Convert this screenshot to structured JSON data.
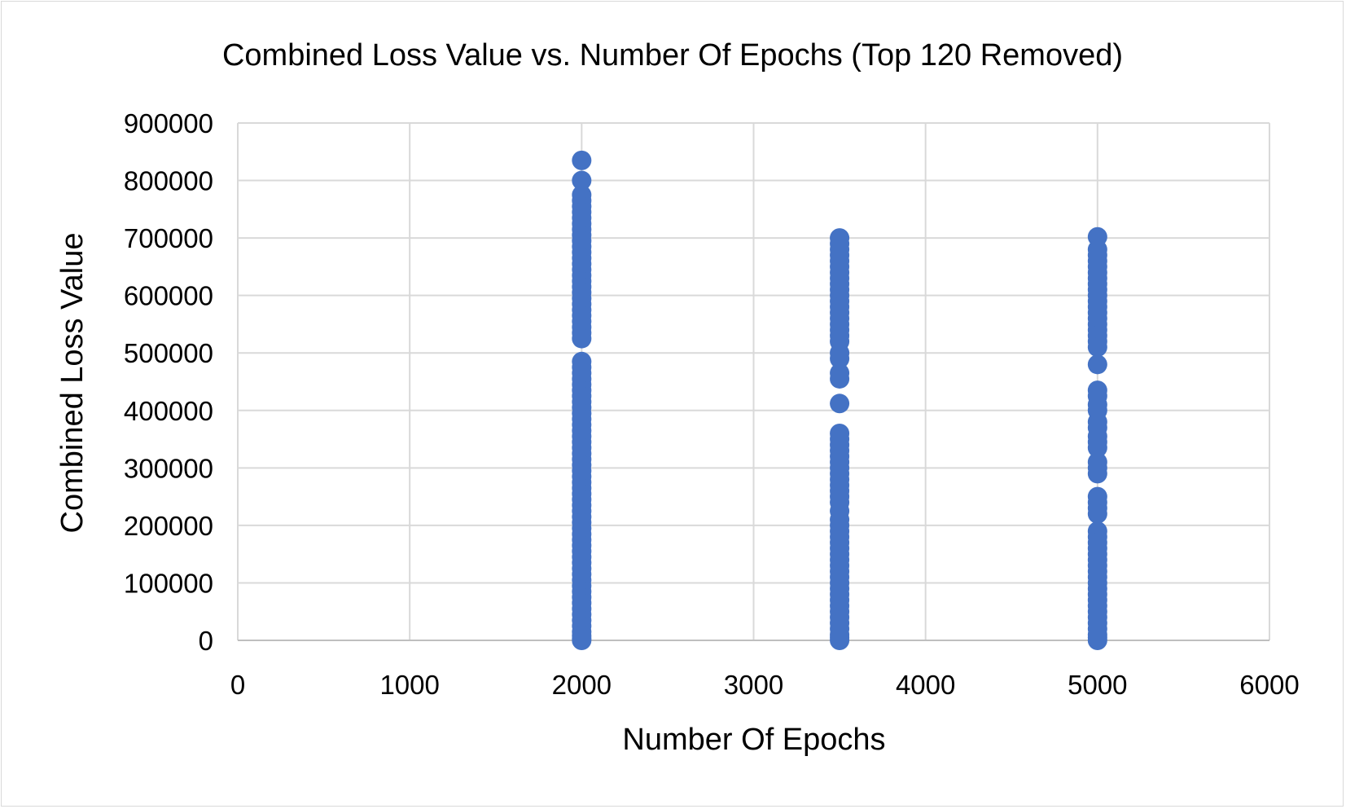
{
  "chart_data": {
    "type": "scatter",
    "title": "Combined Loss Value vs. Number Of Epochs (Top 120 Removed)",
    "xlabel": "Number Of Epochs",
    "ylabel": "Combined Loss Value",
    "xlim": [
      0,
      6000
    ],
    "ylim": [
      0,
      900000
    ],
    "xticks": [
      0,
      1000,
      2000,
      3000,
      4000,
      5000,
      6000
    ],
    "yticks": [
      0,
      100000,
      200000,
      300000,
      400000,
      500000,
      600000,
      700000,
      800000,
      900000
    ],
    "grid": true,
    "legend": "none",
    "marker_color": "#4472C4",
    "series": [
      {
        "x": 2000,
        "y": [
          835000,
          800000,
          775000,
          765000,
          755000,
          745000,
          735000,
          725000,
          715000,
          705000,
          695000,
          685000,
          675000,
          665000,
          655000,
          645000,
          635000,
          625000,
          615000,
          605000,
          595000,
          585000,
          575000,
          565000,
          555000,
          545000,
          535000,
          525000,
          485000,
          475000,
          465000,
          455000,
          445000,
          435000,
          425000,
          415000,
          405000,
          395000,
          385000,
          375000,
          365000,
          355000,
          345000,
          335000,
          325000,
          315000,
          305000,
          295000,
          285000,
          275000,
          265000,
          255000,
          245000,
          235000,
          225000,
          215000,
          205000,
          195000,
          185000,
          175000,
          165000,
          155000,
          145000,
          135000,
          125000,
          115000,
          105000,
          95000,
          85000,
          75000,
          65000,
          55000,
          45000,
          35000,
          25000,
          15000,
          8000,
          3000,
          0
        ]
      },
      {
        "x": 3500,
        "y": [
          700000,
          690000,
          680000,
          670000,
          660000,
          650000,
          640000,
          630000,
          620000,
          610000,
          600000,
          590000,
          580000,
          570000,
          560000,
          550000,
          540000,
          530000,
          520000,
          500000,
          490000,
          465000,
          455000,
          412000,
          360000,
          350000,
          340000,
          330000,
          320000,
          310000,
          300000,
          290000,
          280000,
          270000,
          260000,
          250000,
          240000,
          225000,
          210000,
          200000,
          190000,
          180000,
          170000,
          160000,
          150000,
          140000,
          130000,
          120000,
          110000,
          100000,
          90000,
          80000,
          70000,
          60000,
          50000,
          40000,
          30000,
          20000,
          10000,
          5000,
          0
        ]
      },
      {
        "x": 5000,
        "y": [
          702000,
          680000,
          670000,
          660000,
          650000,
          640000,
          630000,
          620000,
          610000,
          600000,
          590000,
          580000,
          570000,
          560000,
          550000,
          540000,
          530000,
          520000,
          510000,
          480000,
          435000,
          425000,
          410000,
          400000,
          380000,
          370000,
          355000,
          345000,
          335000,
          310000,
          300000,
          290000,
          250000,
          240000,
          230000,
          220000,
          190000,
          180000,
          170000,
          160000,
          150000,
          140000,
          130000,
          120000,
          110000,
          100000,
          90000,
          80000,
          70000,
          60000,
          50000,
          40000,
          30000,
          20000,
          10000,
          5000,
          0
        ]
      }
    ]
  }
}
